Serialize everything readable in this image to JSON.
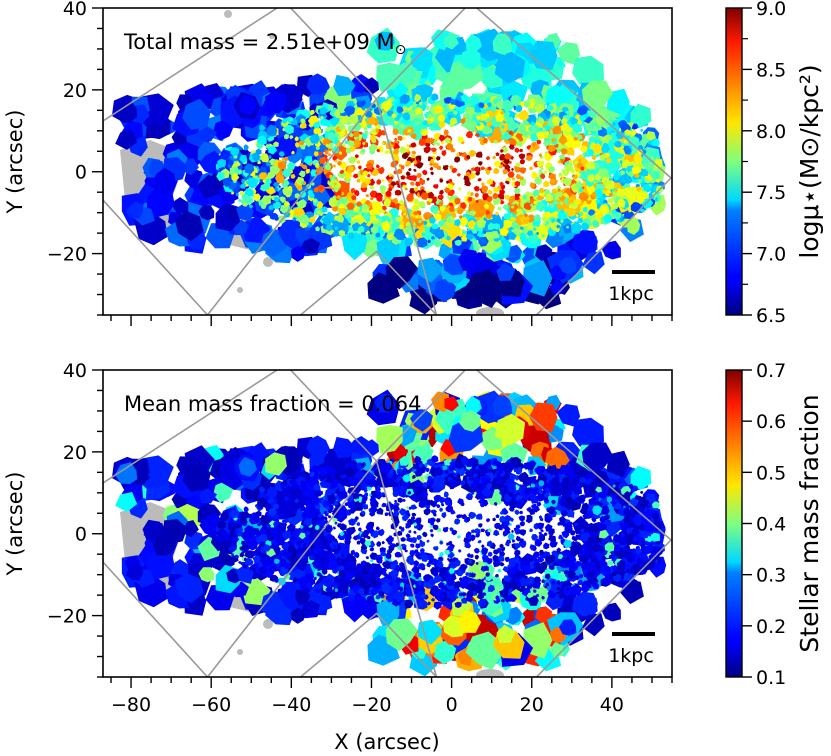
{
  "chart_data": [
    {
      "type": "heatmap",
      "panel": "top",
      "annotation": "Total mass = 2.51e+09 M",
      "annotation_symbol": "⊙",
      "scale_bar_label": "1kpc",
      "xlim": [
        -87,
        55
      ],
      "ylim": [
        -35,
        40
      ],
      "yticks": [
        -20,
        0,
        20,
        40
      ],
      "ytick_labels": [
        "−20",
        "0",
        "20",
        "40"
      ],
      "ylabel": "Y (arcsec)",
      "xlabel": "",
      "colorbar": {
        "label": "logμ⋆(M⊙/kpc²)",
        "range": [
          6.5,
          9.0
        ],
        "ticks": [
          6.5,
          7.0,
          7.5,
          8.0,
          8.5,
          9.0
        ],
        "tick_labels": [
          "6.5",
          "7.0",
          "7.5",
          "8.0",
          "8.5",
          "9.0"
        ],
        "colormap": "jet"
      }
    },
    {
      "type": "heatmap",
      "panel": "bottom",
      "annotation": "Mean mass fraction = 0.064",
      "scale_bar_label": "1kpc",
      "xlim": [
        -87,
        55
      ],
      "ylim": [
        -35,
        40
      ],
      "xticks": [
        -80,
        -60,
        -40,
        -20,
        0,
        20,
        40
      ],
      "xtick_labels": [
        "−80",
        "−60",
        "−40",
        "−20",
        "0",
        "20",
        "40"
      ],
      "yticks": [
        -20,
        0,
        20,
        40
      ],
      "ytick_labels": [
        "−20",
        "0",
        "20",
        "40"
      ],
      "ylabel": "Y (arcsec)",
      "xlabel": "X (arcsec)",
      "colorbar": {
        "label": "Stellar mass fraction",
        "range": [
          0.1,
          0.7
        ],
        "ticks": [
          0.1,
          0.2,
          0.3,
          0.4,
          0.5,
          0.6,
          0.7
        ],
        "tick_labels": [
          "0.1",
          "0.2",
          "0.3",
          "0.4",
          "0.5",
          "0.6",
          "0.7"
        ],
        "colormap": "jet"
      }
    }
  ],
  "colors": {
    "frame": "#000000",
    "footprint_outline": "#999999",
    "masked_region": "#bbbbbb",
    "scale_bar": "#000000"
  }
}
